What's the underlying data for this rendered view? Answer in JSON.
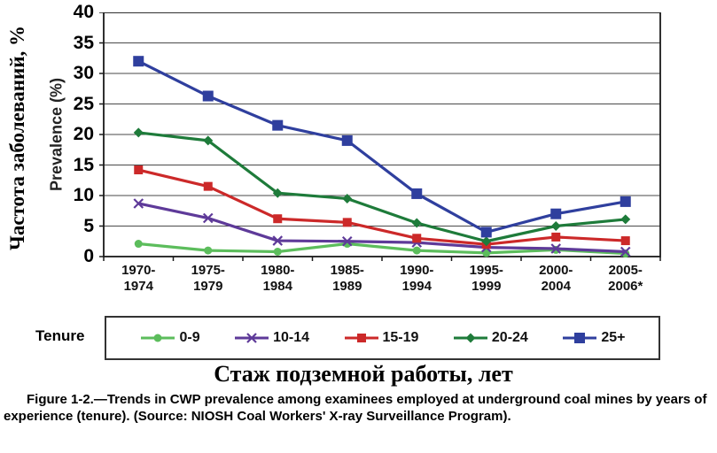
{
  "legend_title": "Tenure",
  "caption": "Figure 1-2.—Trends in CWP prevalence among examinees employed at underground coal mines by years of experience (tenure).  (Source: NIOSH Coal Workers' X-ray Surveillance Program).",
  "chart_data": {
    "type": "line",
    "title": "",
    "xlabel_ru": "Стаж подземной работы, лет",
    "ylabel_ru": "Частота заболеваний, %",
    "ylabel_en": "Prevalence (%)",
    "categories": [
      "1970-1974",
      "1975-1979",
      "1980-1984",
      "1985-1989",
      "1990-1994",
      "1995-1999",
      "2000-2004",
      "2005-2006*"
    ],
    "series": [
      {
        "name": "0-9",
        "color": "#5cbd5c",
        "marker": "circle",
        "marker_size": 9,
        "values": [
          2.1,
          1.0,
          0.8,
          2.1,
          1.0,
          0.6,
          1.1,
          0.5
        ]
      },
      {
        "name": "10-14",
        "color": "#5e3a99",
        "marker": "x",
        "marker_size": 10,
        "values": [
          8.7,
          6.3,
          2.6,
          2.5,
          2.3,
          1.5,
          1.3,
          0.8
        ]
      },
      {
        "name": "15-19",
        "color": "#cc2929",
        "marker": "square",
        "marker_size": 10,
        "values": [
          14.2,
          11.5,
          6.2,
          5.6,
          3.0,
          2.0,
          3.2,
          2.6
        ]
      },
      {
        "name": "20-24",
        "color": "#1e7b3a",
        "marker": "diamond",
        "marker_size": 11,
        "values": [
          20.3,
          19.0,
          10.4,
          9.5,
          5.5,
          2.5,
          5.0,
          6.1
        ]
      },
      {
        "name": "25+",
        "color": "#2f3f9e",
        "marker": "square",
        "marker_size": 12,
        "values": [
          32.0,
          26.3,
          21.5,
          19.0,
          10.3,
          4.0,
          7.0,
          9.0
        ]
      }
    ],
    "ylim": [
      0,
      40
    ],
    "yticks": [
      0,
      5,
      10,
      15,
      20,
      25,
      30,
      35,
      40
    ],
    "grid": true,
    "grid_color": "#4a4a4a",
    "border_color": "#1a1a1a",
    "legend_position": "bottom"
  }
}
